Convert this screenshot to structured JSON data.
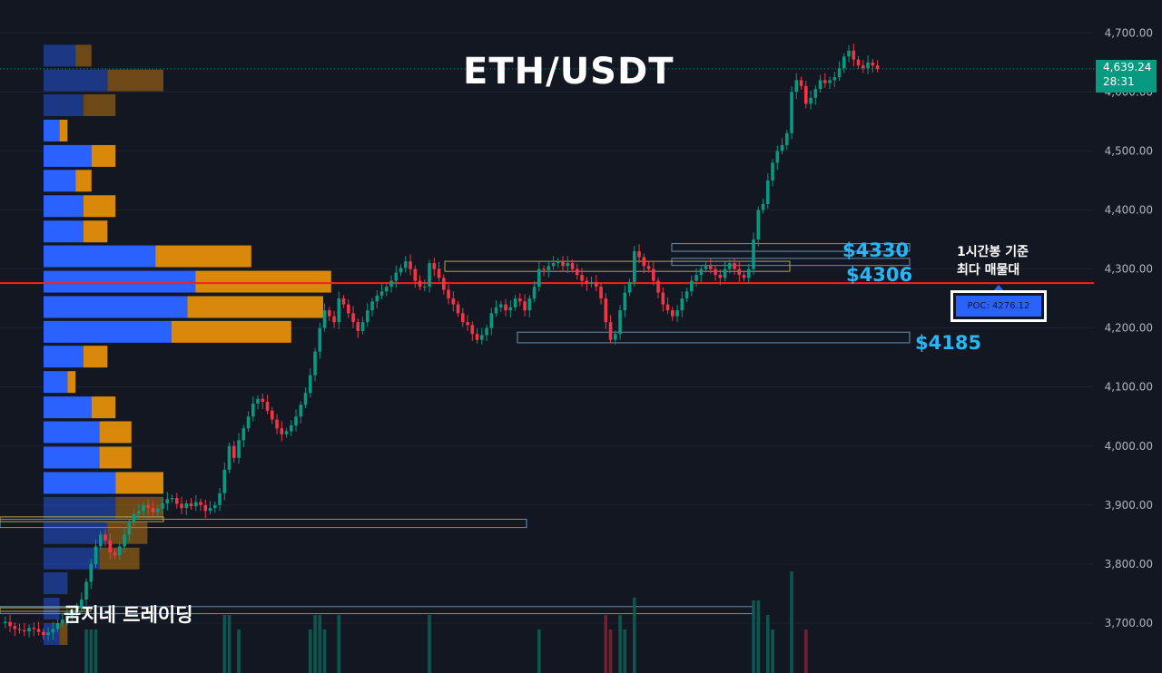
{
  "title": "ETH/USDT",
  "brand": "곰지네 트레이딩",
  "note": {
    "line1": "1시간봉 기준",
    "line2": "최다 매물대"
  },
  "poc_label": "POC: 4276.12",
  "levels": {
    "l4330": "$4330",
    "l4306": "$4306",
    "l4185": "$4185"
  },
  "last_price": {
    "price": "4,639.24",
    "countdown": "28:31"
  },
  "colors": {
    "bg": "#131722",
    "up": "#089981",
    "down": "#f23645",
    "poc": "#ff1e1e",
    "vp_blue": "#2962ff",
    "vp_orange": "#d9880a",
    "level": "#29b6f6"
  },
  "chart_data": {
    "type": "candlestick",
    "title": "ETH/USDT",
    "y_axis": {
      "ticks": [
        "3,700.00",
        "3,800.00",
        "3,900.00",
        "4,000.00",
        "4,100.00",
        "4,200.00",
        "4,300.00",
        "4,400.00",
        "4,500.00",
        "4,600.00",
        "4,700.00"
      ],
      "ylim": [
        3640,
        4730
      ]
    },
    "close_path": [
      3700,
      3702,
      3695,
      3690,
      3688,
      3686,
      3692,
      3690,
      3685,
      3680,
      3684,
      3690,
      3700,
      3706,
      3712,
      3718,
      3725,
      3740,
      3770,
      3800,
      3830,
      3850,
      3840,
      3820,
      3815,
      3830,
      3850,
      3870,
      3885,
      3890,
      3900,
      3895,
      3888,
      3894,
      3903,
      3910,
      3912,
      3902,
      3895,
      3903,
      3898,
      3905,
      3900,
      3890,
      3895,
      3900,
      3920,
      3960,
      4000,
      3980,
      4010,
      4030,
      4050,
      4072,
      4080,
      4075,
      4060,
      4045,
      4030,
      4020,
      4025,
      4035,
      4050,
      4070,
      4090,
      4120,
      4160,
      4200,
      4230,
      4220,
      4210,
      4250,
      4240,
      4225,
      4210,
      4195,
      4210,
      4230,
      4245,
      4255,
      4262,
      4270,
      4280,
      4294,
      4302,
      4313,
      4300,
      4280,
      4270,
      4270,
      4310,
      4300,
      4285,
      4265,
      4250,
      4240,
      4225,
      4210,
      4205,
      4190,
      4180,
      4188,
      4200,
      4225,
      4235,
      4240,
      4230,
      4235,
      4250,
      4245,
      4230,
      4250,
      4270,
      4300,
      4298,
      4305,
      4310,
      4313,
      4305,
      4310,
      4300,
      4290,
      4280,
      4275,
      4278,
      4270,
      4250,
      4210,
      4180,
      4190,
      4230,
      4260,
      4278,
      4330,
      4320,
      4305,
      4300,
      4280,
      4260,
      4240,
      4230,
      4220,
      4230,
      4250,
      4262,
      4280,
      4290,
      4300,
      4305,
      4300,
      4290,
      4285,
      4300,
      4310,
      4300,
      4290,
      4285,
      4300,
      4350,
      4400,
      4410,
      4450,
      4480,
      4500,
      4510,
      4530,
      4600,
      4620,
      4610,
      4580,
      4590,
      4605,
      4620,
      4615,
      4620,
      4625,
      4640,
      4660,
      4670,
      4655,
      4645,
      4640,
      4650,
      4645,
      4639.24
    ],
    "poc": 4276.12,
    "levels": [
      4330,
      4306,
      4185
    ],
    "last": {
      "price": 4639.24,
      "countdown": "28:31"
    },
    "volume_profile": [
      {
        "price": 4660,
        "buy": 0.04,
        "sell": 0.02
      },
      {
        "price": 4618,
        "buy": 0.08,
        "sell": 0.07
      },
      {
        "price": 4576,
        "buy": 0.05,
        "sell": 0.04
      },
      {
        "price": 4533,
        "buy": 0.02,
        "sell": 0.01
      },
      {
        "price": 4490,
        "buy": 0.06,
        "sell": 0.03
      },
      {
        "price": 4448,
        "buy": 0.04,
        "sell": 0.02
      },
      {
        "price": 4405,
        "buy": 0.05,
        "sell": 0.04
      },
      {
        "price": 4362,
        "buy": 0.05,
        "sell": 0.03
      },
      {
        "price": 4320,
        "buy": 0.14,
        "sell": 0.12
      },
      {
        "price": 4277,
        "buy": 0.19,
        "sell": 0.17
      },
      {
        "price": 4234,
        "buy": 0.18,
        "sell": 0.17
      },
      {
        "price": 4192,
        "buy": 0.16,
        "sell": 0.15
      },
      {
        "price": 4150,
        "buy": 0.05,
        "sell": 0.03
      },
      {
        "price": 4107,
        "buy": 0.03,
        "sell": 0.01
      },
      {
        "price": 4064,
        "buy": 0.06,
        "sell": 0.03
      },
      {
        "price": 4022,
        "buy": 0.07,
        "sell": 0.04
      },
      {
        "price": 3979,
        "buy": 0.07,
        "sell": 0.04
      },
      {
        "price": 3936,
        "buy": 0.09,
        "sell": 0.06
      },
      {
        "price": 3894,
        "buy": 0.09,
        "sell": 0.06
      },
      {
        "price": 3851,
        "buy": 0.08,
        "sell": 0.05
      },
      {
        "price": 3808,
        "buy": 0.07,
        "sell": 0.05
      },
      {
        "price": 3766,
        "buy": 0.03,
        "sell": 0.0
      },
      {
        "price": 3723,
        "buy": 0.02,
        "sell": 0.0
      },
      {
        "price": 3680,
        "buy": 0.02,
        "sell": 0.01
      }
    ]
  }
}
